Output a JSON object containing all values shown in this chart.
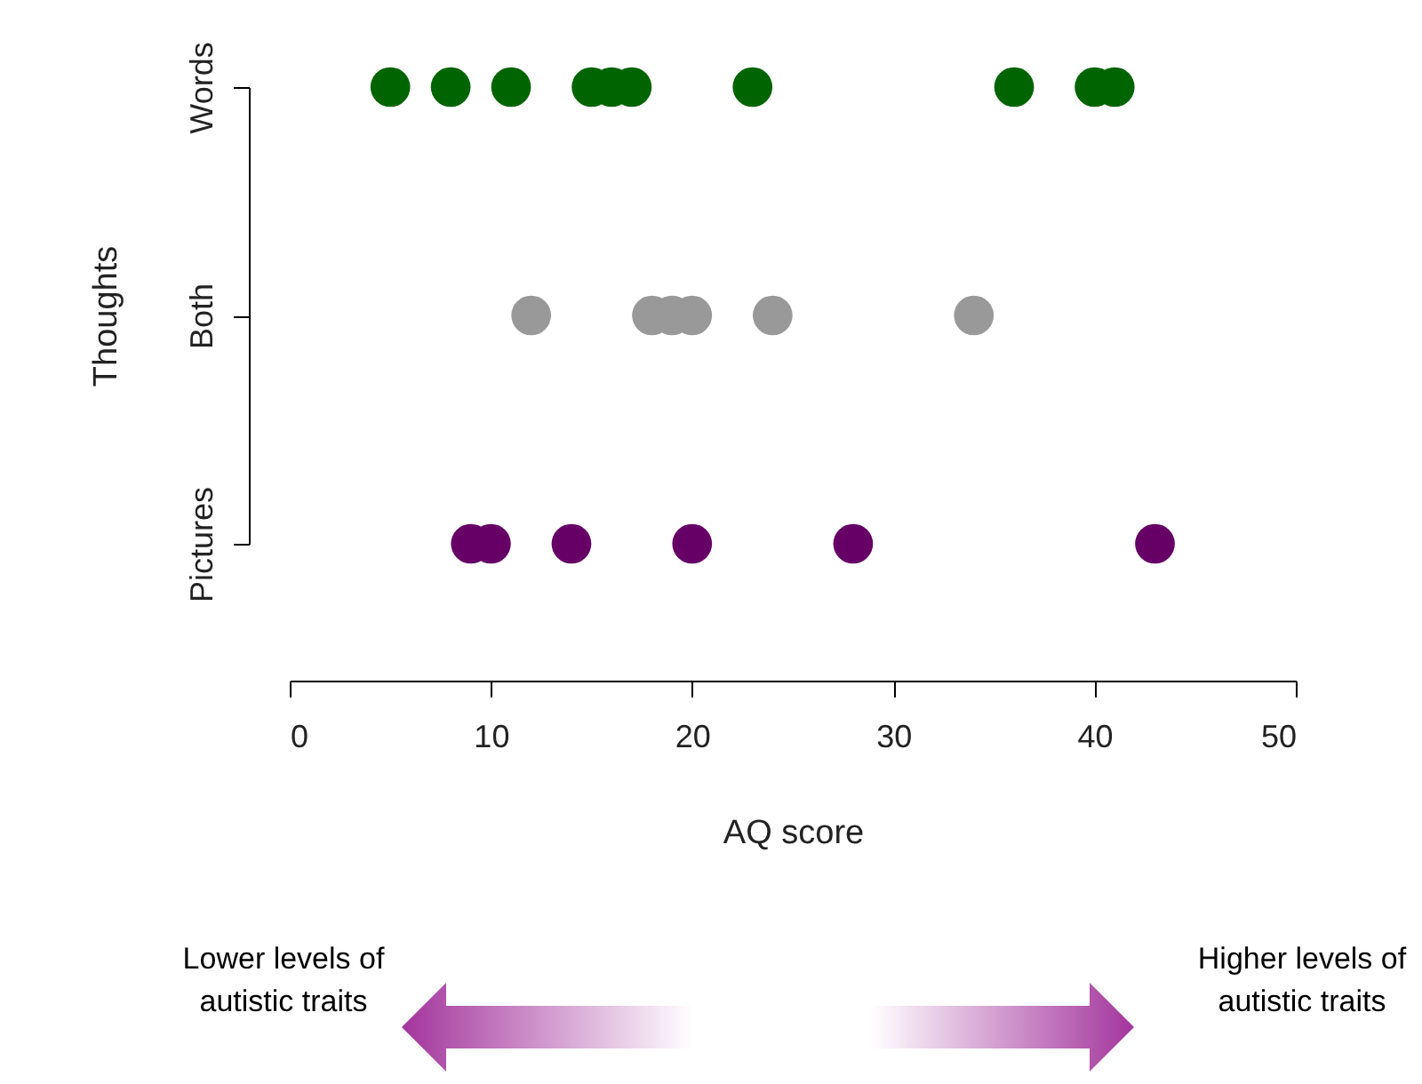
{
  "chart_data": {
    "type": "scatter",
    "orientation": "horizontal",
    "xlabel": "AQ score",
    "ylabel": "Thoughts",
    "categories": [
      "Words",
      "Both",
      "Pictures"
    ],
    "xlim": [
      0,
      50
    ],
    "xticks": [
      0,
      10,
      20,
      30,
      40,
      50
    ],
    "marker": "circle",
    "grid": false,
    "legend": false,
    "series": [
      {
        "color": "#006400",
        "x": [
          "Words",
          "Words",
          "Words",
          "Words",
          "Words",
          "Words",
          "Words",
          "Words",
          "Words",
          "Words"
        ],
        "values": [
          5,
          8,
          11,
          15,
          16,
          17,
          23,
          36,
          40,
          41
        ]
      },
      {
        "color": "#999999",
        "x": [
          "Both",
          "Both",
          "Both",
          "Both",
          "Both",
          "Both"
        ],
        "values": [
          12,
          18,
          19,
          20,
          24,
          34
        ]
      },
      {
        "color": "#660066",
        "x": [
          "Pictures",
          "Pictures",
          "Pictures",
          "Pictures",
          "Pictures",
          "Pictures"
        ],
        "values": [
          9,
          10,
          14,
          20,
          28,
          43
        ]
      }
    ],
    "annotations": [
      "Lower levels of autistic traits",
      "Higher levels of autistic traits"
    ]
  }
}
